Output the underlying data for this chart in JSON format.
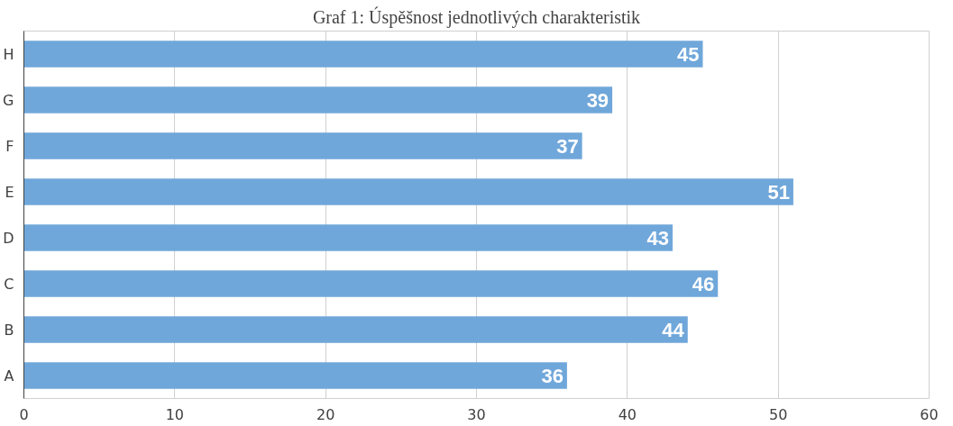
{
  "chart_data": {
    "type": "bar",
    "orientation": "horizontal",
    "title": "Graf 1: Úspěšnost jednotlivých charakteristik",
    "categories": [
      "H",
      "G",
      "F",
      "E",
      "D",
      "C",
      "B",
      "A"
    ],
    "values": [
      45,
      39,
      37,
      51,
      43,
      46,
      44,
      36
    ],
    "color": "#70a7da",
    "xlim": [
      0,
      60
    ],
    "xticks": [
      0,
      10,
      20,
      30,
      40,
      50,
      60
    ],
    "grid": "x",
    "data_labels": true
  }
}
